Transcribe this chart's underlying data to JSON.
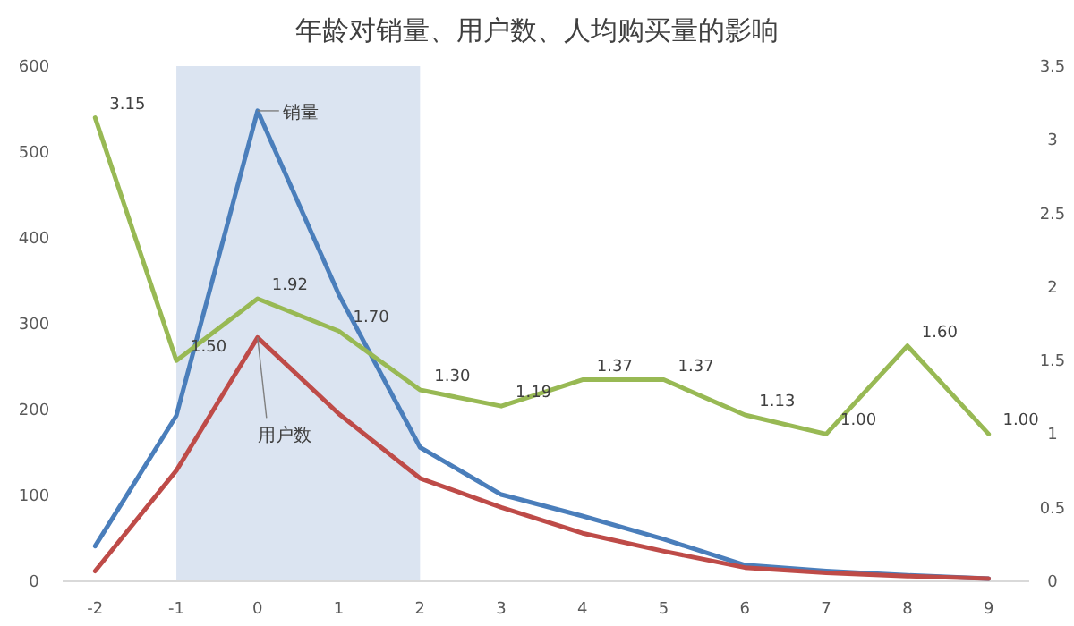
{
  "chart_data": {
    "type": "line",
    "title": "年龄对销量、用户数、人均购买量的影响",
    "x": [
      -2,
      -1,
      0,
      1,
      2,
      3,
      4,
      5,
      6,
      7,
      8,
      9
    ],
    "xlim": [
      -2.4,
      9.5
    ],
    "xticks": [
      -2,
      -1,
      0,
      1,
      2,
      3,
      4,
      5,
      6,
      7,
      8,
      9
    ],
    "ylim": [
      0,
      600
    ],
    "yticks": [
      0,
      100,
      200,
      300,
      400,
      500,
      600
    ],
    "y2lim": [
      0,
      3.5
    ],
    "y2ticks": [
      0,
      0.5,
      1,
      1.5,
      2,
      2.5,
      3,
      3.5
    ],
    "grid": false,
    "marker": "none",
    "line_style": "solid",
    "bands": [
      {
        "axis": "x",
        "from": -1,
        "to": 2,
        "color": "#dbe4f1"
      }
    ],
    "series": [
      {
        "name": "销量",
        "color": "#4a7ebb",
        "values": [
          41,
          193,
          548,
          334,
          156,
          101,
          76,
          49,
          19,
          12,
          7,
          3
        ]
      },
      {
        "name": "用户数",
        "color": "#be4b48",
        "values": [
          12,
          129,
          284,
          195,
          120,
          86,
          56,
          35,
          16,
          10,
          6,
          3
        ]
      },
      {
        "color": "#98b954",
        "axis": "y2",
        "values": [
          3.15,
          1.5,
          1.92,
          1.7,
          1.3,
          1.19,
          1.37,
          1.37,
          1.13,
          1.0,
          1.6,
          1.0
        ],
        "value_labels": [
          "3.15",
          "1.50",
          "1.92",
          "1.70",
          "1.30",
          "1.19",
          "1.37",
          "1.37",
          "1.13",
          "1.00",
          "1.60",
          "1.00"
        ]
      }
    ]
  }
}
